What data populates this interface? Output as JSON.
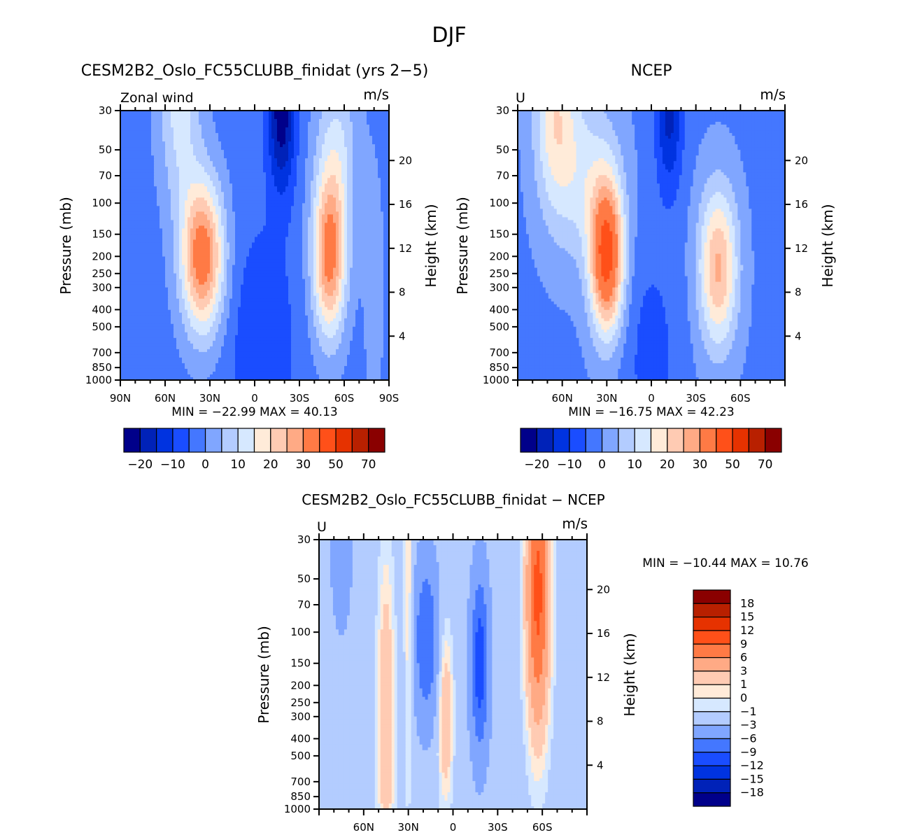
{
  "figure": {
    "title": "DJF",
    "variable": "Zonal wind"
  },
  "chart_data": [
    {
      "type": "heatmap",
      "subtype": "filled-contour",
      "id": "model",
      "title": "CESM2B2_Oslo_FC55CLUBB_finidat (yrs 2−5)",
      "left_label": "Zonal wind",
      "units": "m/s",
      "ylabel": "Pressure (mb)",
      "ylabel_right": "Height (km)",
      "x_ticks": [
        "90N",
        "60N",
        "30N",
        "0",
        "30S",
        "60S",
        "90S"
      ],
      "x_tick_values": [
        90,
        60,
        30,
        0,
        -30,
        -60,
        -90
      ],
      "xlim": [
        90,
        -90
      ],
      "y_ticks": [
        "30",
        "50",
        "70",
        "100",
        "150",
        "200",
        "250",
        "300",
        "400",
        "500",
        "700",
        "850",
        "1000"
      ],
      "y_tick_values": [
        30,
        50,
        70,
        100,
        150,
        200,
        250,
        300,
        400,
        500,
        700,
        850,
        1000
      ],
      "ylim": [
        1000,
        30
      ],
      "yscale": "log",
      "height_ticks": [
        "20",
        "16",
        "12",
        "8",
        "4"
      ],
      "height_tick_values": [
        20,
        16,
        12,
        8,
        4
      ],
      "min_label": "MIN = −22.99   MAX =  40.13",
      "min": -22.99,
      "max": 40.13,
      "features": {
        "nh_jet_max_ms": 35,
        "nh_jet_lat": 35,
        "nh_jet_p": 200,
        "sh_jet_max_ms": 32,
        "sh_jet_lat": -50,
        "sh_jet_p": 200,
        "tropical_easterly_min_ms": -22,
        "tropical_easterly_lat": -18,
        "tropical_easterly_p": 30
      },
      "colorbar": {
        "orientation": "horizontal",
        "labels": [
          "−20",
          "−10",
          "0",
          "10",
          "20",
          "30",
          "50",
          "70"
        ]
      }
    },
    {
      "type": "heatmap",
      "subtype": "filled-contour",
      "id": "obs",
      "title": "NCEP",
      "left_label": "U",
      "units": "m/s",
      "ylabel": "Pressure (mb)",
      "ylabel_right": "Height (km)",
      "x_ticks": [
        "60N",
        "30N",
        "0",
        "30S",
        "60S"
      ],
      "x_tick_values": [
        60,
        30,
        0,
        -30,
        -60
      ],
      "xlim": [
        90,
        -90
      ],
      "y_ticks": [
        "30",
        "50",
        "70",
        "100",
        "150",
        "200",
        "250",
        "300",
        "400",
        "500",
        "700",
        "850",
        "1000"
      ],
      "y_tick_values": [
        30,
        50,
        70,
        100,
        150,
        200,
        250,
        300,
        400,
        500,
        700,
        850,
        1000
      ],
      "ylim": [
        1000,
        30
      ],
      "yscale": "log",
      "height_ticks": [
        "20",
        "16",
        "12",
        "8",
        "4"
      ],
      "height_tick_values": [
        20,
        16,
        12,
        8,
        4
      ],
      "min_label": "MIN = −16.75   MAX =  42.23",
      "min": -16.75,
      "max": 42.23,
      "features": {
        "nh_jet_max_ms": 42,
        "nh_jet_lat": 30,
        "nh_jet_p": 200,
        "sh_jet_max_ms": 26,
        "sh_jet_lat": -45,
        "sh_jet_p": 250,
        "tropical_easterly_min_ms": -16,
        "tropical_easterly_lat": -12,
        "tropical_easterly_p": 30
      },
      "colorbar": {
        "orientation": "horizontal",
        "labels": [
          "−20",
          "−10",
          "0",
          "10",
          "20",
          "30",
          "50",
          "70"
        ]
      }
    },
    {
      "type": "heatmap",
      "subtype": "filled-contour",
      "id": "diff",
      "title": "CESM2B2_Oslo_FC55CLUBB_finidat − NCEP",
      "left_label": "U",
      "units": "m/s",
      "ylabel": "Pressure (mb)",
      "ylabel_right": "Height (km)",
      "x_ticks": [
        "60N",
        "30N",
        "0",
        "30S",
        "60S"
      ],
      "x_tick_values": [
        60,
        30,
        0,
        -30,
        -60
      ],
      "xlim": [
        90,
        -90
      ],
      "y_ticks": [
        "30",
        "50",
        "70",
        "100",
        "150",
        "200",
        "250",
        "300",
        "400",
        "500",
        "700",
        "850",
        "1000"
      ],
      "y_tick_values": [
        30,
        50,
        70,
        100,
        150,
        200,
        250,
        300,
        400,
        500,
        700,
        850,
        1000
      ],
      "ylim": [
        1000,
        30
      ],
      "yscale": "log",
      "height_ticks": [
        "20",
        "16",
        "12",
        "8",
        "4"
      ],
      "height_tick_values": [
        20,
        16,
        12,
        8,
        4
      ],
      "min_label": "MIN = −10.44   MAX =  10.76",
      "min": -10.44,
      "max": 10.76,
      "colorbar": {
        "orientation": "vertical",
        "labels": [
          "18",
          "15",
          "12",
          "9",
          "6",
          "3",
          "1",
          "0",
          "−1",
          "−3",
          "−6",
          "−9",
          "−12",
          "−15",
          "−18"
        ]
      }
    }
  ],
  "levels": {
    "abs": [
      -25,
      -20,
      -15,
      -10,
      -5,
      0,
      5,
      10,
      15,
      20,
      25,
      30,
      40,
      50,
      60,
      70
    ],
    "diff": [
      -18,
      -15,
      -12,
      -9,
      -6,
      -3,
      -1,
      0,
      1,
      3,
      6,
      9,
      12,
      15,
      18
    ]
  },
  "colors": [
    "#00008a",
    "#0022b8",
    "#0033e0",
    "#1a4dff",
    "#4477ff",
    "#80a6ff",
    "#b3ccff",
    "#d6e8ff",
    "#ffebd9",
    "#ffcbb3",
    "#ffaa85",
    "#ff7a45",
    "#ff5019",
    "#e63200",
    "#b82000",
    "#8a0000"
  ]
}
